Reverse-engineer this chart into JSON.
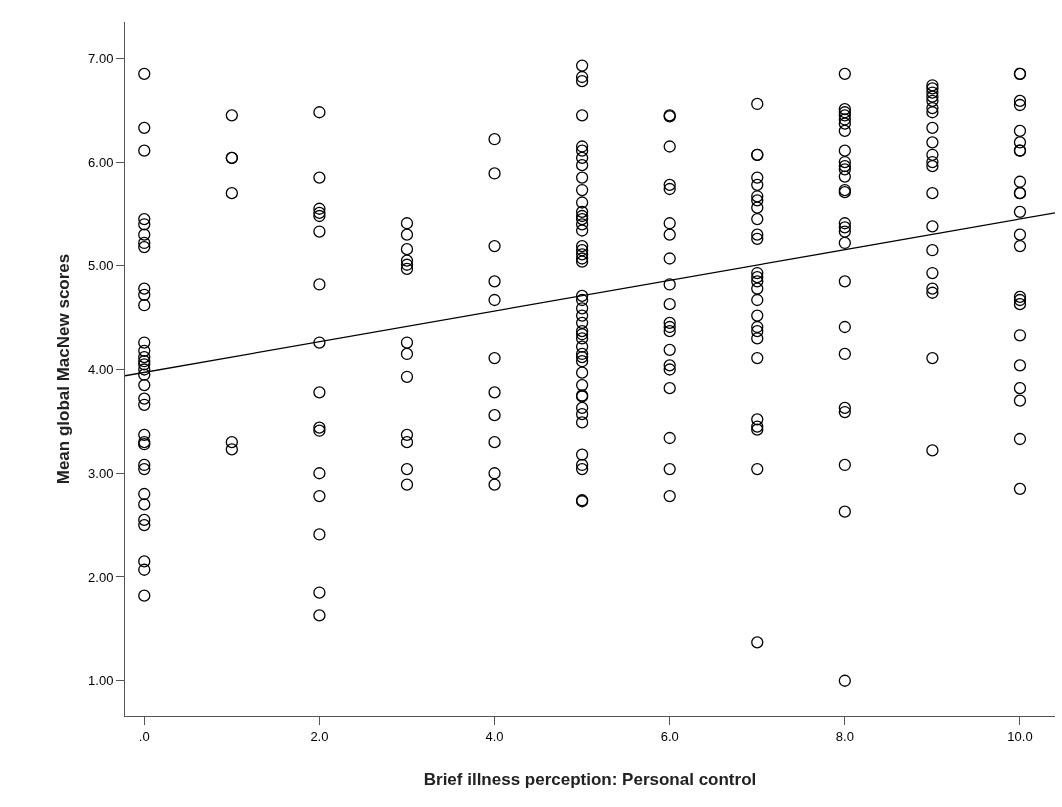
{
  "chart_data": {
    "type": "scatter",
    "xlabel": "Brief illness perception: Personal control",
    "ylabel": "Mean global MacNew scores",
    "xlim": [
      -0.22,
      10.4
    ],
    "ylim": [
      0.66,
      7.35
    ],
    "xticks": [
      {
        "value": 0,
        "label": ".0"
      },
      {
        "value": 2,
        "label": "2.0"
      },
      {
        "value": 4,
        "label": "4.0"
      },
      {
        "value": 6,
        "label": "6.0"
      },
      {
        "value": 8,
        "label": "8.0"
      },
      {
        "value": 10,
        "label": "10.0"
      }
    ],
    "yticks": [
      {
        "value": 1,
        "label": "1.00"
      },
      {
        "value": 2,
        "label": "2.00"
      },
      {
        "value": 3,
        "label": "3.00"
      },
      {
        "value": 4,
        "label": "4.00"
      },
      {
        "value": 5,
        "label": "5.00"
      },
      {
        "value": 6,
        "label": "6.00"
      },
      {
        "value": 7,
        "label": "7.00"
      }
    ],
    "marker": "circle",
    "series": [
      {
        "color": "#000000",
        "x": [
          0,
          0,
          0,
          0,
          0,
          0,
          0,
          0,
          0,
          0,
          0,
          0,
          0,
          0,
          0,
          0,
          0,
          0,
          0,
          0,
          0,
          0,
          0,
          0,
          0,
          0,
          0,
          0,
          0,
          0,
          0,
          0,
          0,
          1,
          1,
          1,
          1,
          1,
          1,
          2,
          2,
          2,
          2,
          2,
          2,
          2,
          2,
          2,
          2,
          2,
          2,
          2,
          2,
          2,
          2,
          3,
          3,
          3,
          3,
          3,
          3,
          3,
          3,
          3,
          3,
          3,
          3,
          3,
          4,
          4,
          4,
          4,
          4,
          4,
          4,
          4,
          4,
          4,
          4
        ],
        "values": [
          6.85,
          6.33,
          6.11,
          5.45,
          5.4,
          5.3,
          5.22,
          5.18,
          4.78,
          4.72,
          4.62,
          4.26,
          4.18,
          4.12,
          4.08,
          4.05,
          4.0,
          3.95,
          3.85,
          3.72,
          3.66,
          3.37,
          3.3,
          3.28,
          3.08,
          3.04,
          2.8,
          2.7,
          2.55,
          2.5,
          2.15,
          2.07,
          1.82,
          6.45,
          6.04,
          6.04,
          5.7,
          3.3,
          3.23,
          6.48,
          5.85,
          5.55,
          5.51,
          5.48,
          5.33,
          4.82,
          4.26,
          3.78,
          3.44,
          3.41,
          3.0,
          2.78,
          2.41,
          1.85,
          1.63,
          5.41,
          5.3,
          5.16,
          5.05,
          5.01,
          4.97,
          4.26,
          4.15,
          3.93,
          3.37,
          3.3,
          3.04,
          2.89,
          6.22,
          5.89,
          5.19,
          4.85,
          4.67,
          4.11,
          3.78,
          3.56,
          3.3,
          3.0,
          2.89
        ]
      },
      {
        "color": "#000000",
        "x": [
          5,
          5,
          5,
          5,
          5,
          5,
          5,
          5,
          5,
          5,
          5,
          5,
          5,
          5,
          5,
          5,
          5,
          5,
          5,
          5,
          5,
          5,
          5,
          5,
          5,
          5,
          5,
          5,
          5,
          5,
          5,
          5,
          5,
          5,
          5,
          5,
          5,
          5,
          5,
          5,
          5,
          5,
          5,
          5,
          5,
          6,
          6,
          6,
          6,
          6,
          6,
          6,
          6,
          6,
          6,
          6,
          6,
          6,
          6,
          6,
          6,
          6,
          6,
          6,
          6
        ],
        "values": [
          6.93,
          6.82,
          6.78,
          6.45,
          6.15,
          6.11,
          6.04,
          5.97,
          5.85,
          5.73,
          5.61,
          5.52,
          5.48,
          5.45,
          5.4,
          5.34,
          5.19,
          5.15,
          5.11,
          5.07,
          5.04,
          4.71,
          4.67,
          4.59,
          4.52,
          4.45,
          4.37,
          4.34,
          4.3,
          4.22,
          4.15,
          4.12,
          4.08,
          3.97,
          3.85,
          3.75,
          3.74,
          3.63,
          3.57,
          3.49,
          3.18,
          3.08,
          3.04,
          2.74,
          2.73,
          6.45,
          6.44,
          6.15,
          5.78,
          5.74,
          5.41,
          5.3,
          5.07,
          4.82,
          4.63,
          4.45,
          4.41,
          4.37,
          4.19,
          4.04,
          4.0,
          3.82,
          3.34,
          3.04,
          2.78
        ]
      },
      {
        "color": "#000000",
        "x": [
          7,
          7,
          7,
          7,
          7,
          7,
          7,
          7,
          7,
          7,
          7,
          7,
          7,
          7,
          7,
          7,
          7,
          7,
          7,
          7,
          7,
          7,
          7,
          7,
          7,
          7,
          8,
          8,
          8,
          8,
          8,
          8,
          8,
          8,
          8,
          8,
          8,
          8,
          8,
          8,
          8,
          8,
          8,
          8,
          8,
          8,
          8,
          8,
          8,
          8,
          8,
          8
        ],
        "values": [
          6.56,
          6.07,
          6.07,
          5.85,
          5.78,
          5.67,
          5.63,
          5.56,
          5.45,
          5.3,
          5.26,
          4.93,
          4.89,
          4.85,
          4.78,
          4.67,
          4.52,
          4.41,
          4.37,
          4.3,
          4.11,
          3.52,
          3.45,
          3.42,
          3.04,
          1.37,
          6.85,
          6.51,
          6.48,
          6.45,
          6.41,
          6.37,
          6.3,
          6.11,
          6.0,
          5.96,
          5.93,
          5.86,
          5.73,
          5.71,
          5.41,
          5.37,
          5.33,
          5.22,
          4.85,
          4.41,
          4.15,
          3.63,
          3.59,
          3.08,
          2.63,
          1.0
        ]
      },
      {
        "color": "#000000",
        "x": [
          9,
          9,
          9,
          9,
          9,
          9,
          9,
          9,
          9,
          9,
          9,
          9,
          9,
          9,
          9,
          9,
          9,
          9,
          9,
          9,
          10,
          10,
          10,
          10,
          10,
          10,
          10,
          10,
          10,
          10,
          10,
          10,
          10,
          10,
          10,
          10,
          10,
          10,
          10,
          10,
          10,
          10,
          10
        ],
        "values": [
          6.74,
          6.71,
          6.67,
          6.63,
          6.59,
          6.52,
          6.48,
          6.33,
          6.19,
          6.07,
          6.0,
          5.96,
          5.7,
          5.38,
          5.15,
          4.93,
          4.78,
          4.74,
          4.11,
          3.22,
          6.85,
          6.85,
          6.59,
          6.55,
          6.3,
          6.19,
          6.11,
          6.11,
          5.81,
          5.7,
          5.7,
          5.52,
          5.3,
          5.19,
          4.7,
          4.67,
          4.63,
          4.33,
          4.04,
          3.82,
          3.7,
          3.33,
          2.85
        ]
      },
      {
        "type": "line",
        "color": "#000000",
        "marker": "none",
        "line_style": "solid",
        "x": [
          -0.22,
          10.4
        ],
        "values": [
          3.94,
          5.51
        ]
      }
    ]
  }
}
